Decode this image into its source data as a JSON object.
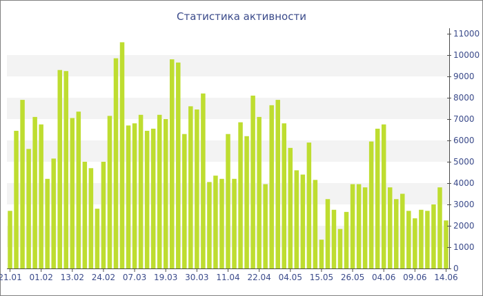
{
  "chart_data": {
    "type": "bar",
    "title": "Статистика активности",
    "xlabel": "",
    "ylabel": "",
    "ylim": [
      0,
      11000
    ],
    "y_ticks": [
      0,
      1000,
      2000,
      3000,
      4000,
      5000,
      6000,
      7000,
      8000,
      9000,
      10000,
      11000
    ],
    "y_axis_position": "right",
    "grid": "alternating horizontal bands",
    "x_tick_labels": [
      "21.01",
      "01.02",
      "13.02",
      "24.02",
      "07.03",
      "19.03",
      "30.03",
      "11.04",
      "22.04",
      "04.05",
      "15.05",
      "26.05",
      "04.06",
      "09.06",
      "14.06"
    ],
    "x_tick_bar_index": [
      0,
      5,
      10,
      15,
      20,
      25,
      30,
      35,
      40,
      45,
      50,
      55,
      60,
      65,
      70
    ],
    "values": [
      2700,
      6450,
      7900,
      5600,
      7100,
      6750,
      4200,
      5150,
      9300,
      9250,
      7050,
      7350,
      5000,
      4700,
      2800,
      5000,
      7150,
      9850,
      10600,
      6700,
      6800,
      7200,
      6450,
      6550,
      7200,
      7000,
      9800,
      9650,
      6300,
      7600,
      7450,
      8200,
      4050,
      4350,
      4200,
      6300,
      4200,
      6850,
      6200,
      8100,
      7100,
      3950,
      7650,
      7900,
      6800,
      5650,
      4600,
      4400,
      5900,
      4150,
      1350,
      3250,
      2750,
      1850,
      2650,
      3950,
      3950,
      3800,
      5950,
      6550,
      6750,
      3800,
      3250,
      3500,
      2700,
      2350,
      2750,
      2700,
      3000,
      3800,
      2250
    ],
    "bar_color": "#bedd30",
    "band_color": "#f3f3f3",
    "axis_text_color": "#3a4a8a"
  }
}
